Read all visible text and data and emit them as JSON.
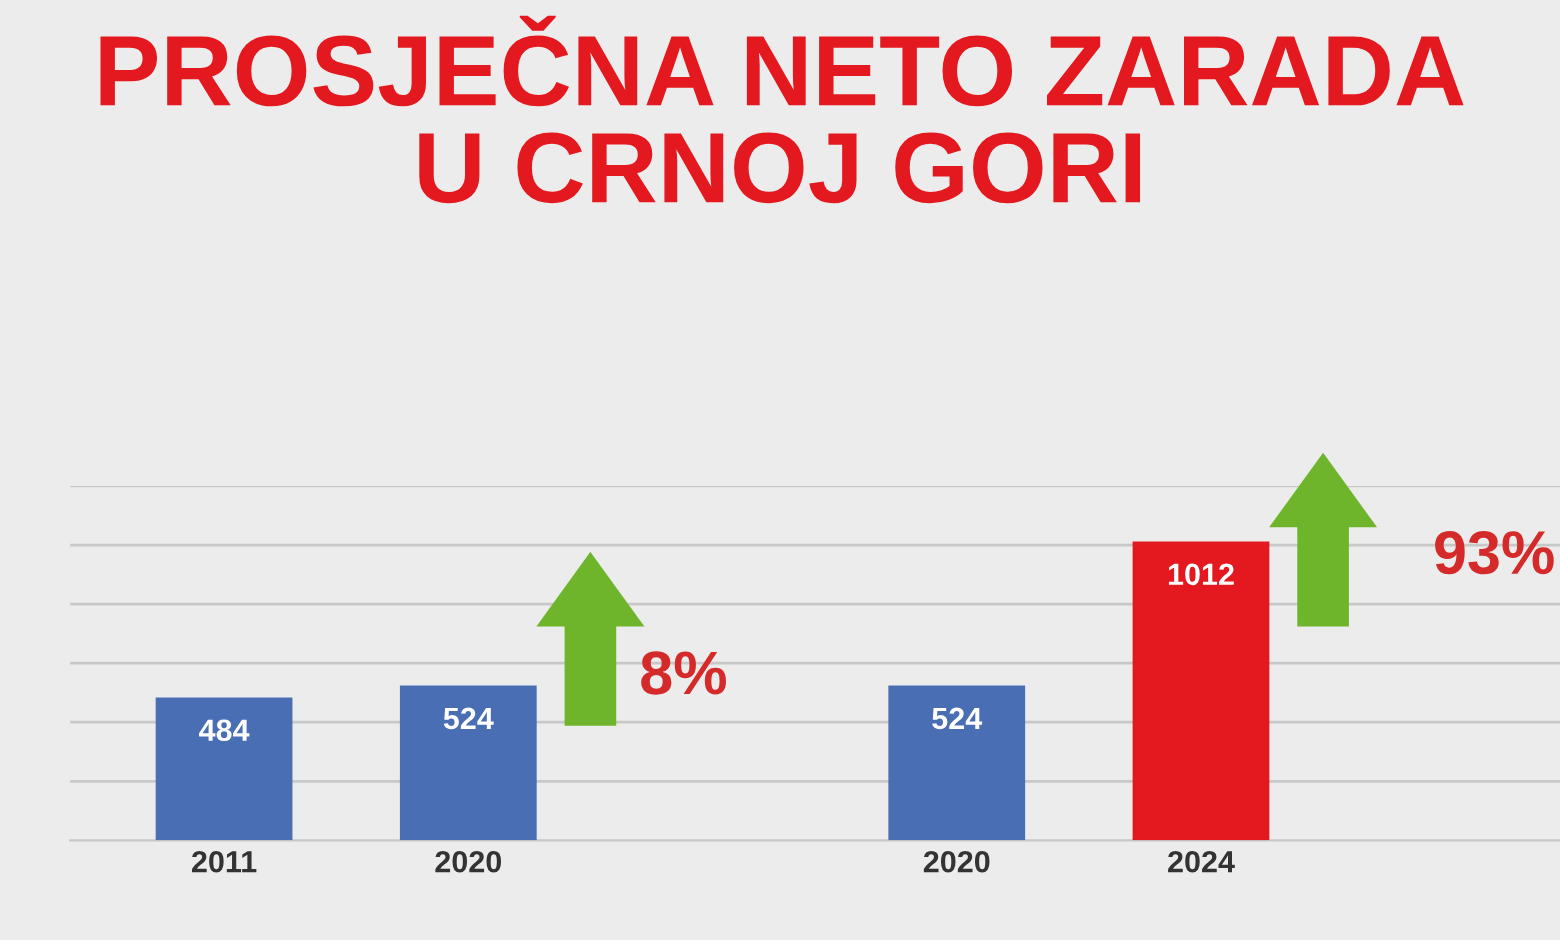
{
  "chart_data": {
    "type": "bar",
    "title": "PROSJEČNA NETO ZARADA\nU CRNOJ GORI",
    "categories": [
      "2011",
      "2020",
      null,
      "2020",
      "2024"
    ],
    "values": [
      484,
      524,
      null,
      524,
      1012
    ],
    "colors": [
      "#4a6eb4",
      "#4a6eb4",
      "#4a6eb4",
      "#4a6eb4",
      "#e3191f"
    ],
    "data_labels": true,
    "ylim": [
      0,
      1200
    ],
    "yticks": [
      {
        "value": 200,
        "label": null
      },
      {
        "value": 400,
        "label": null
      },
      {
        "value": 600,
        "label": null
      },
      {
        "value": 800,
        "label": null
      },
      {
        "value": 1000,
        "label": null
      },
      {
        "value": 1200,
        "label": null
      }
    ],
    "grid": "y",
    "tick_labels": "x",
    "annotations": [
      "8%",
      "93%"
    ]
  }
}
